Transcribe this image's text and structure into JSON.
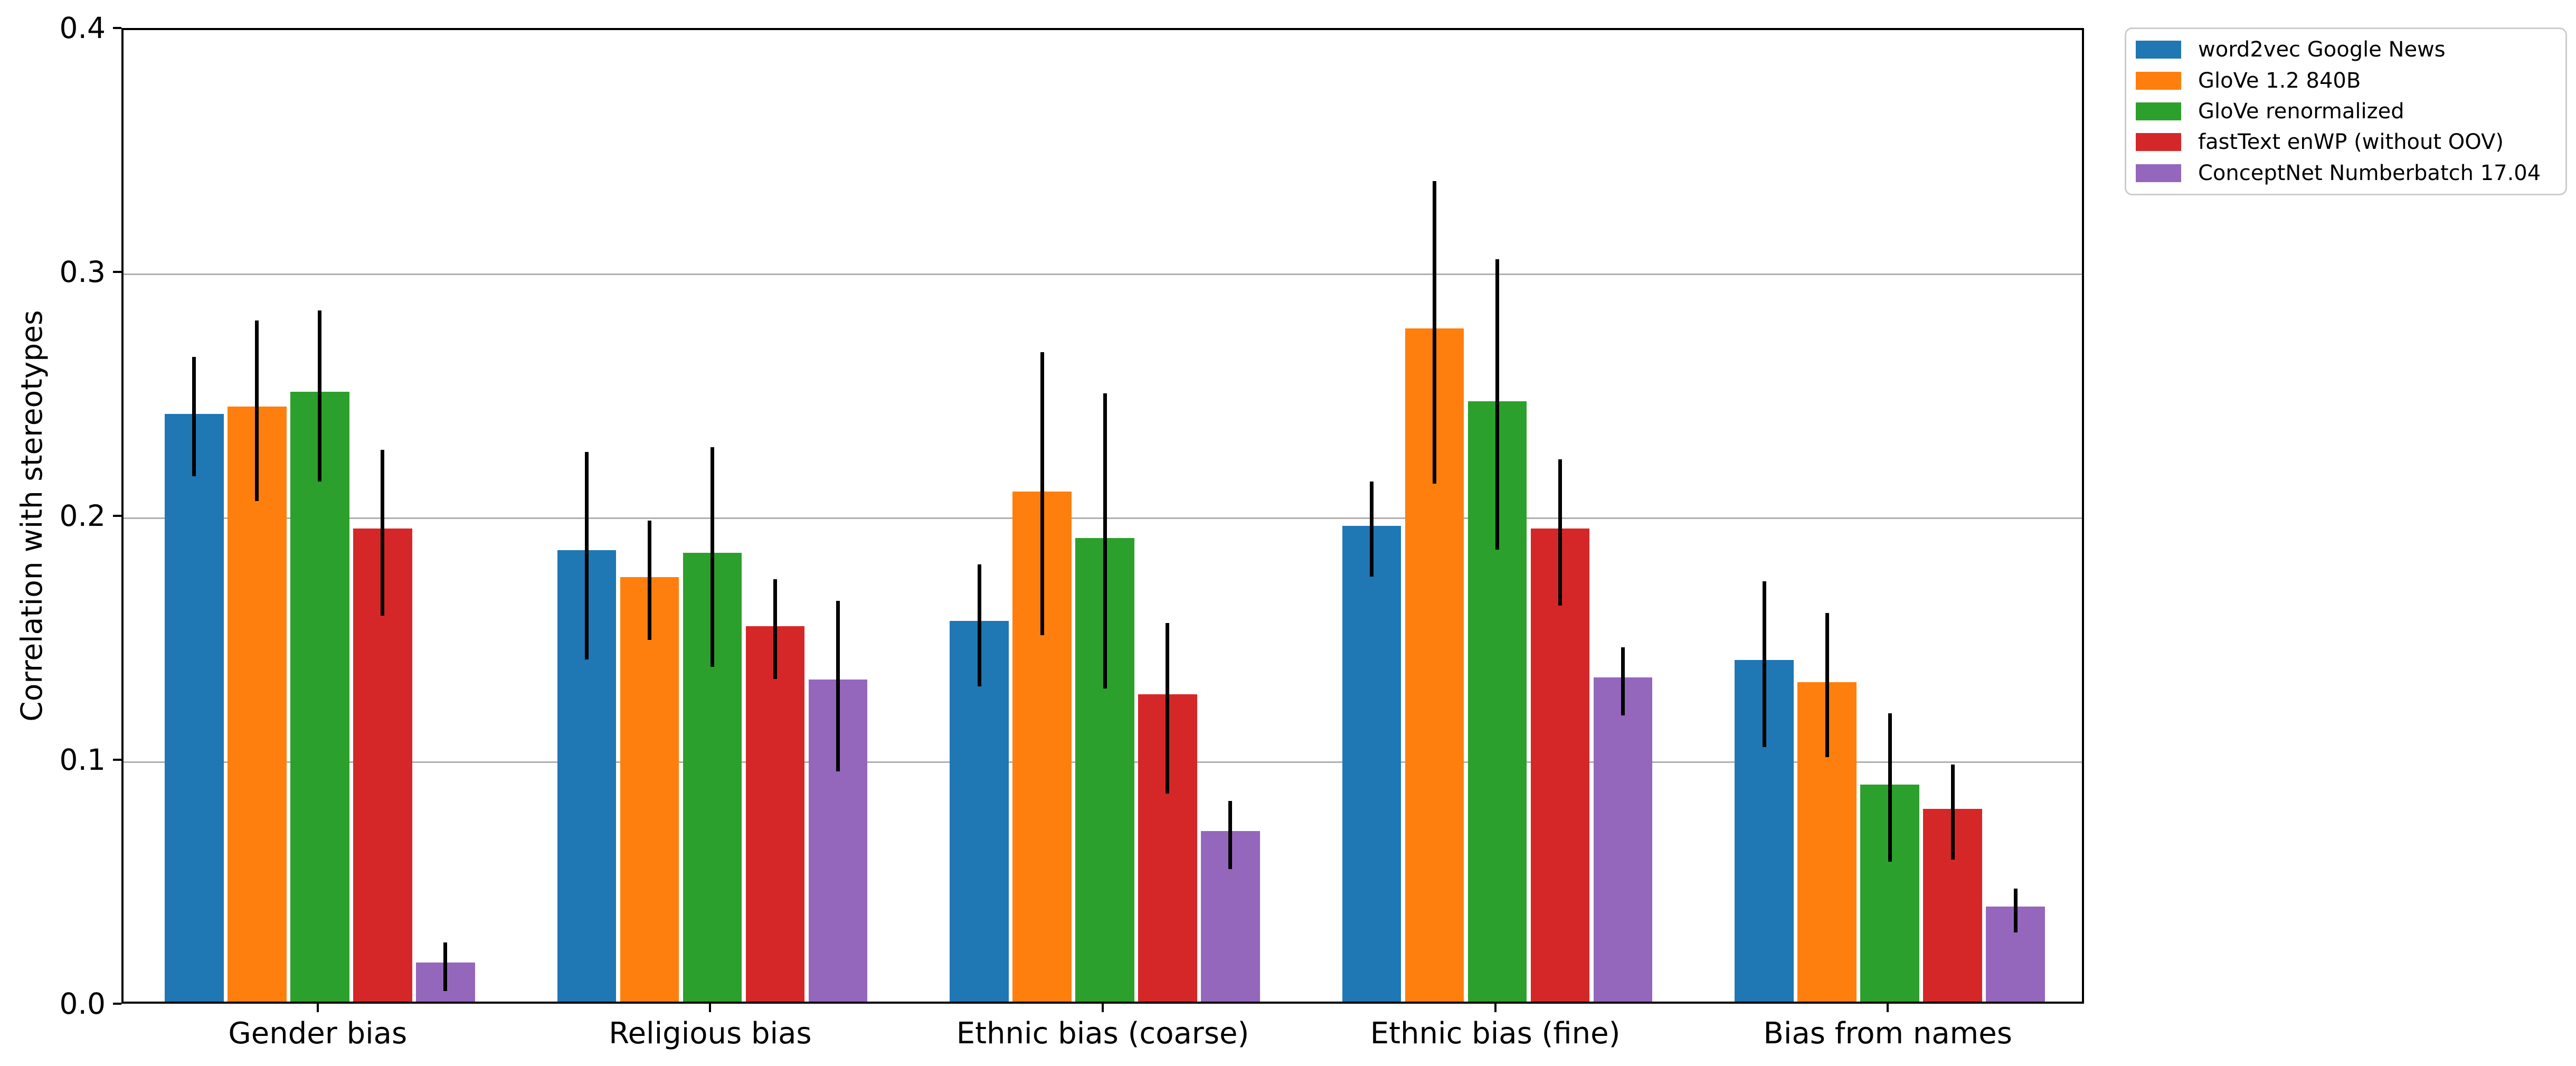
{
  "chart_data": {
    "type": "bar",
    "title": "",
    "xlabel": "",
    "ylabel": "Correlation with stereotypes",
    "ylim": [
      0.0,
      0.4
    ],
    "yticks": [
      "0.0",
      "0.1",
      "0.2",
      "0.3",
      "0.4"
    ],
    "grid": "horizontal",
    "grid_color": "#b0b0b0",
    "spine_color": "#000000",
    "error_bar_color": "#000000",
    "legend_position": "upper-right-outside",
    "categories": [
      "Gender bias",
      "Religious bias",
      "Ethnic bias (coarse)",
      "Ethnic bias (fine)",
      "Bias from names"
    ],
    "series": [
      {
        "name": "word2vec Google News",
        "color": "#1f77b4",
        "values": [
          0.241,
          0.185,
          0.156,
          0.195,
          0.14
        ],
        "err_lo": [
          0.217,
          0.142,
          0.131,
          0.176,
          0.106
        ],
        "err_hi": [
          0.266,
          0.227,
          0.181,
          0.215,
          0.174
        ]
      },
      {
        "name": "GloVe 1.2 840B",
        "color": "#ff7f0e",
        "values": [
          0.244,
          0.174,
          0.209,
          0.276,
          0.131
        ],
        "err_lo": [
          0.207,
          0.15,
          0.152,
          0.214,
          0.102
        ],
        "err_hi": [
          0.281,
          0.199,
          0.268,
          0.338,
          0.161
        ]
      },
      {
        "name": "GloVe renormalized",
        "color": "#2ca02c",
        "values": [
          0.25,
          0.184,
          0.19,
          0.246,
          0.089
        ],
        "err_lo": [
          0.215,
          0.139,
          0.13,
          0.187,
          0.059
        ],
        "err_hi": [
          0.285,
          0.229,
          0.251,
          0.306,
          0.12
        ]
      },
      {
        "name": "fastText enWP (without OOV)",
        "color": "#d62728",
        "values": [
          0.194,
          0.154,
          0.126,
          0.194,
          0.079
        ],
        "err_lo": [
          0.16,
          0.134,
          0.087,
          0.164,
          0.06
        ],
        "err_hi": [
          0.228,
          0.175,
          0.157,
          0.224,
          0.099
        ]
      },
      {
        "name": "ConceptNet Numberbatch 17.04",
        "color": "#9467bd",
        "values": [
          0.016,
          0.132,
          0.07,
          0.133,
          0.039
        ],
        "err_lo": [
          0.006,
          0.096,
          0.056,
          0.119,
          0.03
        ],
        "err_hi": [
          0.026,
          0.166,
          0.084,
          0.147,
          0.048
        ]
      }
    ]
  }
}
